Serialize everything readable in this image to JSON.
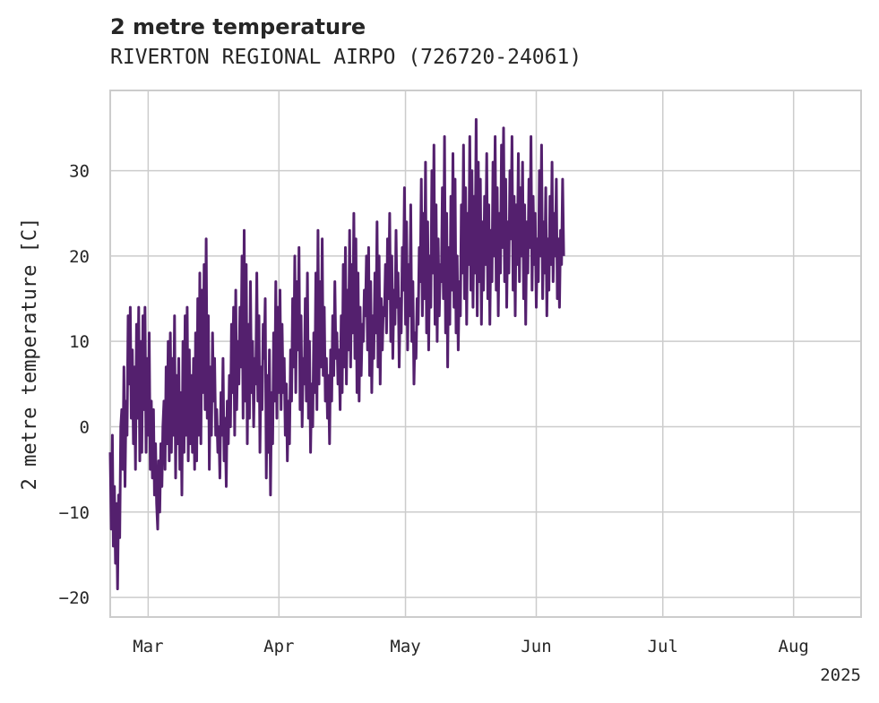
{
  "chart_data": {
    "type": "line",
    "title": "2 metre temperature",
    "subtitle": "RIVERTON REGIONAL AIRPO (726720-24061)",
    "ylabel": "2 metre temperature [C]",
    "xlabel": "",
    "x_range": [
      "2025-02-20",
      "2025-08-17"
    ],
    "ylim": [
      -22.3,
      39.4
    ],
    "yticks": [
      -20,
      -10,
      0,
      10,
      20,
      30
    ],
    "ytick_labels": [
      "−20",
      "−10",
      "0",
      "10",
      "20",
      "30"
    ],
    "xticks": [
      "2025-03-01",
      "2025-04-01",
      "2025-05-01",
      "2025-06-01",
      "2025-07-01",
      "2025-08-01"
    ],
    "xtick_labels": [
      "Mar",
      "Apr",
      "May",
      "Jun",
      "Jul",
      "Aug"
    ],
    "x_offset_label": "2025",
    "grid": true,
    "series": [
      {
        "color": "#54206e",
        "points_per_day": 4,
        "start": "2025-02-20",
        "values": [
          -3,
          -12,
          -1,
          -14,
          -7,
          -16,
          -9,
          -19,
          -8,
          -13,
          0,
          2,
          -5,
          7,
          -7,
          3,
          -1,
          13,
          5,
          14,
          1,
          9,
          -2,
          7,
          -5,
          12,
          1,
          14,
          -4,
          10,
          -3,
          13,
          2,
          14,
          -3,
          8,
          -1,
          11,
          -5,
          3,
          -6,
          2,
          -8,
          -2,
          -9,
          -12,
          -4,
          -10,
          -2,
          -7,
          0,
          3,
          -5,
          7,
          -2,
          10,
          -4,
          11,
          -3,
          8,
          -1,
          13,
          -6,
          6,
          -2,
          8,
          -5,
          4,
          -8,
          10,
          -3,
          13,
          -1,
          14,
          -4,
          9,
          -2,
          6,
          -3,
          8,
          -5,
          11,
          -4,
          15,
          -1,
          18,
          -2,
          16,
          4,
          19,
          2,
          22,
          1,
          13,
          -5,
          7,
          -1,
          11,
          3,
          8,
          -1,
          2,
          -3,
          0,
          -6,
          4,
          -1,
          8,
          -4,
          1,
          -7,
          3,
          -2,
          6,
          0,
          12,
          4,
          14,
          -1,
          16,
          2,
          10,
          5,
          14,
          7,
          20,
          1,
          23,
          3,
          19,
          -2,
          12,
          1,
          17,
          4,
          10,
          0,
          8,
          5,
          18,
          3,
          13,
          -3,
          7,
          2,
          12,
          8,
          15,
          -6,
          6,
          -3,
          9,
          -8,
          4,
          -2,
          11,
          3,
          17,
          1,
          14,
          4,
          16,
          2,
          12,
          4,
          8,
          -1,
          5,
          -4,
          3,
          -2,
          9,
          3,
          15,
          7,
          20,
          4,
          17,
          9,
          21,
          2,
          13,
          0,
          8,
          5,
          15,
          3,
          18,
          1,
          10,
          -3,
          5,
          0,
          11,
          4,
          18,
          2,
          23,
          5,
          17,
          7,
          22,
          6,
          14,
          3,
          8,
          1,
          6,
          -2,
          9,
          3,
          13,
          6,
          17,
          8,
          11,
          5,
          9,
          2,
          13,
          4,
          19,
          7,
          21,
          5,
          16,
          9,
          23,
          7,
          19,
          11,
          25,
          8,
          22,
          4,
          18,
          3,
          14,
          6,
          12,
          10,
          16,
          13,
          20,
          9,
          21,
          6,
          17,
          4,
          13,
          8,
          18,
          11,
          24,
          7,
          20,
          5,
          15,
          9,
          14,
          13,
          19,
          11,
          22,
          15,
          25,
          10,
          20,
          8,
          16,
          12,
          23,
          14,
          18,
          7,
          15,
          11,
          21,
          16,
          28,
          12,
          24,
          9,
          19,
          13,
          26,
          10,
          17,
          5,
          11,
          8,
          15,
          12,
          21,
          17,
          29,
          13,
          25,
          15,
          31,
          11,
          24,
          9,
          20,
          14,
          30,
          18,
          33,
          12,
          26,
          10,
          22,
          13,
          19,
          17,
          28,
          15,
          34,
          11,
          25,
          7,
          21,
          12,
          27,
          16,
          32,
          14,
          29,
          11,
          20,
          9,
          17,
          13,
          26,
          18,
          33,
          15,
          28,
          12,
          25,
          19,
          34,
          16,
          30,
          14,
          27,
          18,
          36,
          13,
          31,
          17,
          29,
          12,
          24,
          16,
          27,
          19,
          32,
          15,
          26,
          12,
          23,
          17,
          31,
          20,
          34,
          16,
          28,
          13,
          25,
          18,
          33,
          21,
          35,
          17,
          29,
          14,
          24,
          18,
          30,
          22,
          34,
          16,
          27,
          13,
          26,
          19,
          32,
          17,
          28,
          20,
          31,
          15,
          26,
          12,
          24,
          18,
          29,
          21,
          34,
          16,
          27,
          19,
          25,
          14,
          22,
          17,
          30,
          20,
          33,
          15,
          24,
          18,
          28,
          13,
          22,
          16,
          27,
          19,
          31,
          17,
          25,
          20,
          29,
          15,
          22,
          14,
          23,
          19,
          29,
          20
        ]
      }
    ]
  }
}
